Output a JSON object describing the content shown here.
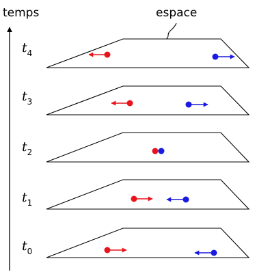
{
  "time_axis": {
    "label": "temps"
  },
  "space_label": "espace",
  "colors": {
    "left_particle": "#e8141c",
    "right_particle": "#1a1ae0",
    "line": "#000000"
  },
  "slices": [
    {
      "letter": "t",
      "index": "4"
    },
    {
      "letter": "t",
      "index": "3"
    },
    {
      "letter": "t",
      "index": "2"
    },
    {
      "letter": "t",
      "index": "1"
    },
    {
      "letter": "t",
      "index": "0"
    }
  ]
}
